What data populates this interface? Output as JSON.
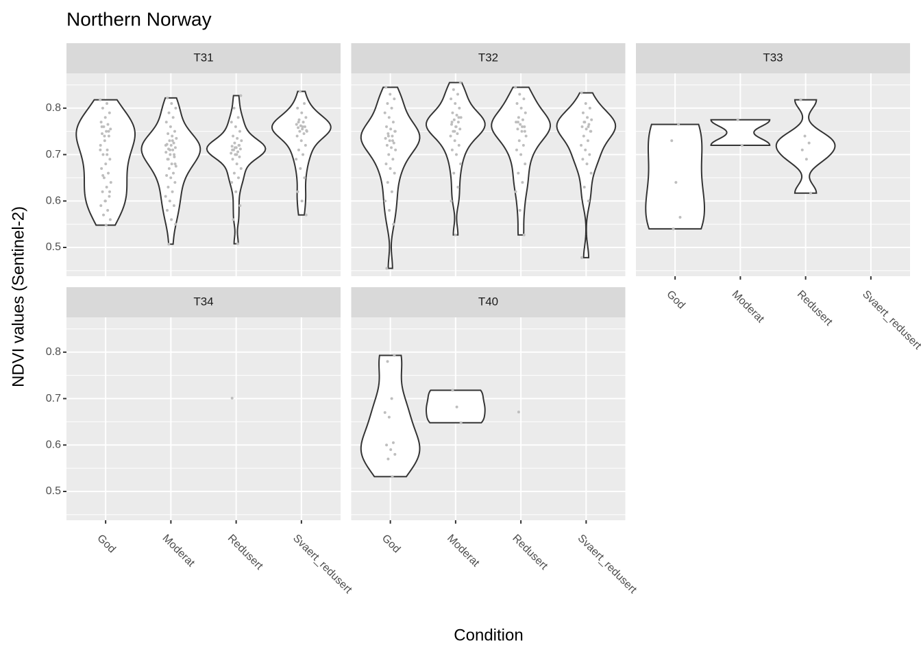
{
  "chart_data": {
    "type": "violin",
    "title": "Northern Norway",
    "x_label": "Condition",
    "y_label": "NDVI values (Sentinel-2)",
    "categories": [
      "God",
      "Moderat",
      "Redusert",
      "Svaert_redusert"
    ],
    "ylim": [
      0.438,
      0.875
    ],
    "yticks": [
      0.5,
      0.6,
      0.7,
      0.8
    ],
    "grid": true,
    "violin_color": "#333333",
    "point_color": "#bebebe",
    "facets": [
      {
        "name": "T31",
        "values": [
          [
            0.818,
            0.81,
            0.8,
            0.79,
            0.78,
            0.77,
            0.765,
            0.76,
            0.755,
            0.75,
            0.745,
            0.74,
            0.73,
            0.72,
            0.71,
            0.7,
            0.69,
            0.68,
            0.67,
            0.66,
            0.65,
            0.64,
            0.63,
            0.62,
            0.61,
            0.6,
            0.59,
            0.58,
            0.57,
            0.56,
            0.548,
            0.76,
            0.75,
            0.74,
            0.71,
            0.7,
            0.655,
            0.62,
            0.6
          ],
          [
            0.507,
            0.55,
            0.56,
            0.58,
            0.59,
            0.6,
            0.61,
            0.62,
            0.63,
            0.64,
            0.65,
            0.655,
            0.66,
            0.67,
            0.675,
            0.68,
            0.69,
            0.695,
            0.7,
            0.705,
            0.71,
            0.712,
            0.715,
            0.72,
            0.722,
            0.725,
            0.73,
            0.735,
            0.74,
            0.745,
            0.75,
            0.76,
            0.77,
            0.78,
            0.79,
            0.8,
            0.81,
            0.822,
            0.7,
            0.71,
            0.72,
            0.73,
            0.69,
            0.68
          ],
          [
            0.508,
            0.56,
            0.59,
            0.62,
            0.64,
            0.65,
            0.66,
            0.67,
            0.68,
            0.69,
            0.695,
            0.7,
            0.703,
            0.706,
            0.71,
            0.712,
            0.715,
            0.718,
            0.72,
            0.725,
            0.73,
            0.735,
            0.74,
            0.75,
            0.76,
            0.77,
            0.78,
            0.8,
            0.827,
            0.7,
            0.71,
            0.72,
            0.715
          ],
          [
            0.57,
            0.6,
            0.62,
            0.65,
            0.67,
            0.69,
            0.7,
            0.71,
            0.72,
            0.73,
            0.74,
            0.745,
            0.75,
            0.752,
            0.755,
            0.758,
            0.76,
            0.762,
            0.765,
            0.77,
            0.775,
            0.78,
            0.79,
            0.8,
            0.81,
            0.836,
            0.75,
            0.76,
            0.77
          ]
        ]
      },
      {
        "name": "T32",
        "values": [
          [
            0.455,
            0.55,
            0.58,
            0.6,
            0.62,
            0.64,
            0.66,
            0.67,
            0.68,
            0.69,
            0.7,
            0.71,
            0.715,
            0.72,
            0.725,
            0.73,
            0.735,
            0.74,
            0.745,
            0.75,
            0.755,
            0.76,
            0.77,
            0.78,
            0.79,
            0.8,
            0.81,
            0.82,
            0.83,
            0.845,
            0.73,
            0.74,
            0.75
          ],
          [
            0.527,
            0.6,
            0.63,
            0.66,
            0.68,
            0.7,
            0.71,
            0.72,
            0.73,
            0.74,
            0.745,
            0.75,
            0.755,
            0.76,
            0.765,
            0.77,
            0.775,
            0.78,
            0.785,
            0.79,
            0.8,
            0.81,
            0.82,
            0.83,
            0.84,
            0.855,
            0.76,
            0.77,
            0.78,
            0.75
          ],
          [
            0.527,
            0.58,
            0.62,
            0.64,
            0.66,
            0.68,
            0.7,
            0.71,
            0.72,
            0.73,
            0.74,
            0.75,
            0.755,
            0.76,
            0.765,
            0.77,
            0.775,
            0.78,
            0.79,
            0.8,
            0.81,
            0.82,
            0.83,
            0.845,
            0.76,
            0.77,
            0.75
          ],
          [
            0.478,
            0.6,
            0.63,
            0.66,
            0.68,
            0.69,
            0.7,
            0.71,
            0.72,
            0.73,
            0.74,
            0.75,
            0.755,
            0.76,
            0.765,
            0.77,
            0.775,
            0.78,
            0.79,
            0.8,
            0.81,
            0.833,
            0.76,
            0.77,
            0.75
          ]
        ]
      },
      {
        "name": "T33",
        "values": [
          [
            0.54,
            0.565,
            0.64,
            0.73,
            0.765
          ],
          [
            0.72,
            0.775
          ],
          [
            0.617,
            0.69,
            0.71,
            0.725,
            0.74,
            0.818
          ],
          []
        ]
      },
      {
        "name": "T34",
        "values": [
          [],
          [],
          [
            0.701
          ],
          []
        ]
      },
      {
        "name": "T40",
        "values": [
          [
            0.532,
            0.57,
            0.58,
            0.59,
            0.6,
            0.605,
            0.66,
            0.67,
            0.7,
            0.78,
            0.793
          ],
          [
            0.648,
            0.682,
            0.718
          ],
          [
            0.671
          ],
          []
        ]
      }
    ]
  }
}
